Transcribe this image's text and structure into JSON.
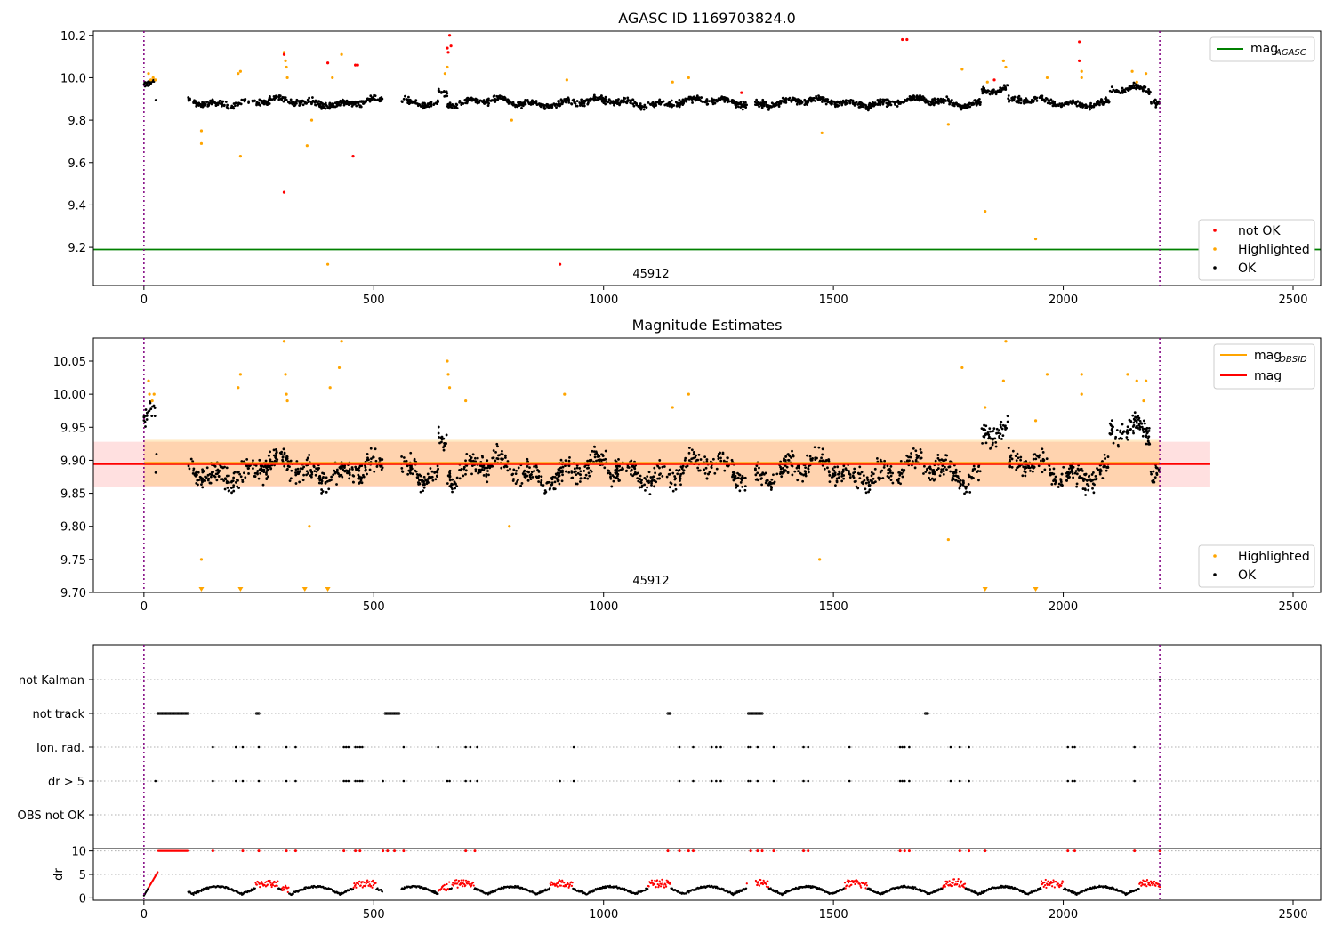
{
  "chart_data": [
    {
      "type": "scatter",
      "title": "AGASC ID 1169703824.0",
      "xlim": [
        -110,
        2560
      ],
      "ylim": [
        9.02,
        10.22
      ],
      "xticks": [
        "0",
        "500",
        "1000",
        "1500",
        "2000",
        "2500"
      ],
      "yticks": [
        "9.2",
        "9.4",
        "9.6",
        "9.8",
        "10.0",
        "10.2"
      ],
      "annotation": "45912",
      "vlines": [
        0,
        2210
      ],
      "hline": {
        "name": "mag_AGASC",
        "y": 9.19,
        "color": "#008000"
      },
      "legend_lines": [
        {
          "name": "mag",
          "sub": "AGASC",
          "color": "#008000"
        }
      ],
      "legend_points": [
        {
          "name": "not OK",
          "color": "#ff0000"
        },
        {
          "name": "Highlighted",
          "color": "#ffa500"
        },
        {
          "name": "OK",
          "color": "#000000"
        }
      ],
      "series": [
        {
          "name": "OK",
          "color": "#000000",
          "description": "dense band of points around 9.88 from x=0 to 2210 (gap 30-95, 520-560, 1310-1330)"
        },
        {
          "name": "Highlighted",
          "color": "#ffa500",
          "points": [
            [
              10,
              10.02
            ],
            [
              15,
              9.99
            ],
            [
              20,
              10.0
            ],
            [
              25,
              9.99
            ],
            [
              125,
              9.75
            ],
            [
              125,
              9.69
            ],
            [
              210,
              9.63
            ],
            [
              205,
              10.02
            ],
            [
              210,
              10.03
            ],
            [
              305,
              10.12
            ],
            [
              308,
              10.08
            ],
            [
              310,
              10.05
            ],
            [
              312,
              10.0
            ],
            [
              355,
              9.68
            ],
            [
              365,
              9.8
            ],
            [
              400,
              9.12
            ],
            [
              410,
              10.0
            ],
            [
              430,
              10.11
            ],
            [
              655,
              10.02
            ],
            [
              660,
              10.05
            ],
            [
              800,
              9.8
            ],
            [
              920,
              9.99
            ],
            [
              1150,
              9.98
            ],
            [
              1185,
              10.0
            ],
            [
              1475,
              9.74
            ],
            [
              1750,
              9.78
            ],
            [
              1780,
              10.04
            ],
            [
              1830,
              9.37
            ],
            [
              1835,
              9.98
            ],
            [
              1870,
              10.08
            ],
            [
              1875,
              10.05
            ],
            [
              1940,
              9.24
            ],
            [
              1965,
              10.0
            ],
            [
              2040,
              10.03
            ],
            [
              2040,
              10.0
            ],
            [
              2150,
              10.03
            ],
            [
              2160,
              9.98
            ],
            [
              2180,
              10.02
            ]
          ]
        },
        {
          "name": "not OK",
          "color": "#ff0000",
          "points": [
            [
              305,
              9.46
            ],
            [
              305,
              10.11
            ],
            [
              400,
              10.07
            ],
            [
              455,
              9.63
            ],
            [
              460,
              10.06
            ],
            [
              465,
              10.06
            ],
            [
              660,
              10.14
            ],
            [
              662,
              10.12
            ],
            [
              665,
              10.2
            ],
            [
              668,
              10.15
            ],
            [
              905,
              9.12
            ],
            [
              1300,
              9.93
            ],
            [
              1650,
              10.18
            ],
            [
              1660,
              10.18
            ],
            [
              2035,
              10.17
            ],
            [
              2035,
              10.08
            ],
            [
              1850,
              9.99
            ]
          ]
        }
      ]
    },
    {
      "type": "scatter",
      "title": "Magnitude Estimates",
      "xlim": [
        -110,
        2560
      ],
      "ylim": [
        9.7,
        10.085
      ],
      "xticks": [
        "0",
        "500",
        "1000",
        "1500",
        "2000",
        "2500"
      ],
      "yticks": [
        "9.70",
        "9.75",
        "9.80",
        "9.85",
        "9.90",
        "9.95",
        "10.00",
        "10.05"
      ],
      "annotation": "45912",
      "vlines": [
        0,
        2210
      ],
      "lines": [
        {
          "name": "mag_OBSID",
          "y": 9.896,
          "x": [
            0,
            2210
          ],
          "color": "#ffa500",
          "band": [
            9.861,
            9.931
          ]
        },
        {
          "name": "mag",
          "y": 9.894,
          "x": [
            -110,
            2320
          ],
          "color": "#ff0000",
          "band": [
            9.859,
            9.928
          ]
        }
      ],
      "legend_lines": [
        {
          "name": "mag",
          "sub": "OBSID",
          "color": "#ffa500"
        },
        {
          "name": "mag",
          "sub": "",
          "color": "#ff0000"
        }
      ],
      "legend_points": [
        {
          "name": "Highlighted",
          "color": "#ffa500"
        },
        {
          "name": "OK",
          "color": "#000000"
        }
      ],
      "series": [
        {
          "name": "OK",
          "color": "#000000",
          "description": "scatter of ~2000 points between 9.80 and 10.00 centred on 9.88"
        },
        {
          "name": "Highlighted",
          "color": "#ffa500",
          "points": [
            [
              10,
              10.02
            ],
            [
              12,
              10.0
            ],
            [
              18,
              9.99
            ],
            [
              22,
              10.0
            ],
            [
              125,
              9.75
            ],
            [
              205,
              10.01
            ],
            [
              210,
              10.03
            ],
            [
              305,
              10.08
            ],
            [
              308,
              10.03
            ],
            [
              310,
              10.0
            ],
            [
              312,
              9.99
            ],
            [
              360,
              9.8
            ],
            [
              405,
              10.01
            ],
            [
              425,
              10.04
            ],
            [
              430,
              10.08
            ],
            [
              660,
              10.05
            ],
            [
              662,
              10.03
            ],
            [
              665,
              10.01
            ],
            [
              700,
              9.99
            ],
            [
              795,
              9.8
            ],
            [
              915,
              10.0
            ],
            [
              1150,
              9.98
            ],
            [
              1185,
              10.0
            ],
            [
              1470,
              9.75
            ],
            [
              1750,
              9.78
            ],
            [
              1780,
              10.04
            ],
            [
              1830,
              9.98
            ],
            [
              1870,
              10.02
            ],
            [
              1875,
              10.08
            ],
            [
              1940,
              9.96
            ],
            [
              1965,
              10.03
            ],
            [
              2040,
              10.03
            ],
            [
              2040,
              10.0
            ],
            [
              2140,
              10.03
            ],
            [
              2160,
              10.02
            ],
            [
              2175,
              9.99
            ],
            [
              2180,
              10.02
            ]
          ]
        },
        {
          "name": "Highlighted (off-scale)",
          "color": "#ffa500",
          "marker": "triangle",
          "points": [
            [
              125,
              9.7
            ],
            [
              210,
              9.7
            ],
            [
              350,
              9.7
            ],
            [
              400,
              9.7
            ],
            [
              1830,
              9.7
            ],
            [
              1940,
              9.7
            ]
          ]
        }
      ]
    },
    {
      "type": "scatter",
      "xlim": [
        -110,
        2560
      ],
      "ylabels": [
        "not Kalman",
        "not track",
        "Ion. rad.",
        "dr > 5",
        "OBS not OK"
      ],
      "vlines": [
        0,
        2210
      ],
      "rows": [
        {
          "label": "not Kalman",
          "x": [
            2210
          ]
        },
        {
          "label": "not track",
          "ranges": [
            [
              30,
              95
            ],
            [
              245,
              250
            ],
            [
              525,
              555
            ],
            [
              1140,
              1145
            ],
            [
              1315,
              1345
            ],
            [
              1700,
              1705
            ]
          ]
        },
        {
          "label": "Ion. rad.",
          "x": [
            150,
            200,
            215,
            250,
            310,
            330,
            435,
            440,
            445,
            460,
            465,
            470,
            475,
            565,
            640,
            700,
            710,
            725,
            935,
            1165,
            1195,
            1235,
            1245,
            1255,
            1315,
            1320,
            1335,
            1370,
            1435,
            1445,
            1535,
            1645,
            1650,
            1655,
            1665,
            1755,
            1775,
            1795,
            2010,
            2020,
            2025,
            2155
          ]
        },
        {
          "label": "dr > 5",
          "x": [
            25,
            150,
            200,
            215,
            250,
            310,
            330,
            435,
            440,
            445,
            460,
            465,
            470,
            475,
            520,
            565,
            660,
            665,
            700,
            710,
            725,
            905,
            935,
            1165,
            1195,
            1235,
            1245,
            1255,
            1315,
            1320,
            1335,
            1370,
            1435,
            1445,
            1535,
            1645,
            1650,
            1655,
            1665,
            1755,
            1775,
            1795,
            2010,
            2020,
            2025,
            2155
          ]
        },
        {
          "label": "OBS not OK",
          "x": []
        }
      ]
    },
    {
      "type": "scatter",
      "ylabel": "dr",
      "xlim": [
        -110,
        2560
      ],
      "ylim": [
        -0.5,
        10.5
      ],
      "xticks": [
        "0",
        "500",
        "1000",
        "1500",
        "2000",
        "2500"
      ],
      "yticks": [
        "0",
        "5",
        "10"
      ],
      "vlines": [
        0,
        2210
      ],
      "series": [
        {
          "name": "dr",
          "color": "#000000",
          "description": "dr values oscillating between 0 and 3; red where flagged, clipped at 10"
        }
      ]
    }
  ]
}
